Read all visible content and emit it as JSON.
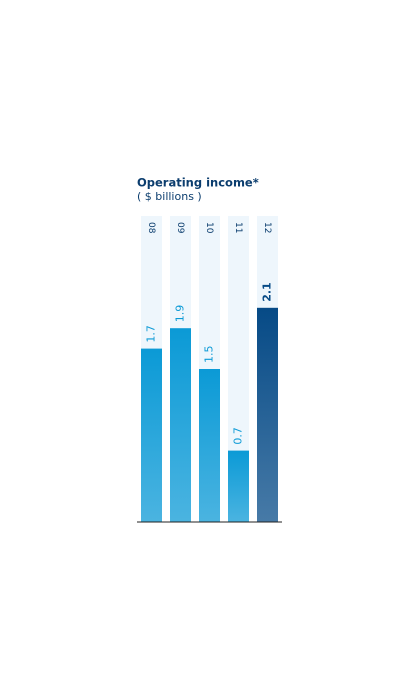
{
  "chart_data": {
    "type": "bar",
    "title": "Operating income*",
    "subtitle": "( $ billions )",
    "categories": [
      "08",
      "09",
      "10",
      "11",
      "12"
    ],
    "values": [
      1.7,
      1.9,
      1.5,
      0.7,
      2.1
    ],
    "colors": [
      "#0b9ad6",
      "#0b9ad6",
      "#0b9ad6",
      "#0b9ad6",
      "#064a86"
    ],
    "ylim": [
      0,
      3
    ]
  }
}
